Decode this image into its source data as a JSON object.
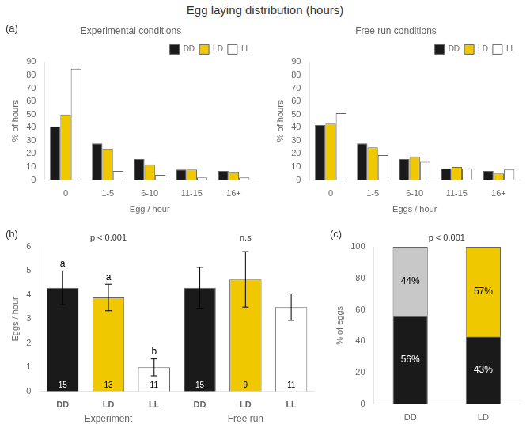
{
  "title": "Egg laying distribution (hours)",
  "chart_data": [
    {
      "type": "bar",
      "title": "Experimental conditions",
      "categories": [
        "0",
        "1-5",
        "6-10",
        "11-15",
        "16+"
      ],
      "xlabel": "Egg / hour",
      "ylabel": "% of hours",
      "ylim": [
        0,
        90
      ],
      "yticks": [
        0,
        10,
        20,
        30,
        40,
        50,
        60,
        70,
        80,
        90
      ],
      "grid": false,
      "legend": "upper right",
      "series": [
        {
          "name": "DD",
          "color": "#1a1a1a",
          "values": [
            41,
            28,
            16,
            8,
            7
          ]
        },
        {
          "name": "LD",
          "color": "#f0c800",
          "values": [
            50,
            24,
            12,
            8,
            6
          ]
        },
        {
          "name": "LL",
          "color": "#ffffff",
          "values": [
            85,
            7,
            4,
            2,
            2
          ]
        }
      ],
      "annotations": [
        {
          "text": "(a)",
          "anchor": "panel"
        }
      ]
    },
    {
      "type": "bar",
      "title": "Free run conditions",
      "categories": [
        "0",
        "1-5",
        "6-10",
        "11-15",
        "16+"
      ],
      "xlabel": "Eggs / hour",
      "ylabel": "% of hours",
      "ylim": [
        0,
        90
      ],
      "yticks": [
        0,
        10,
        20,
        30,
        40,
        50,
        60,
        70,
        80,
        90
      ],
      "grid": false,
      "legend": "upper right",
      "series": [
        {
          "name": "DD",
          "color": "#1a1a1a",
          "values": [
            42,
            28,
            16,
            9,
            7
          ]
        },
        {
          "name": "LD",
          "color": "#f0c800",
          "values": [
            43,
            25,
            18,
            10,
            5
          ]
        },
        {
          "name": "LL",
          "color": "#ffffff",
          "values": [
            51,
            19,
            14,
            9,
            8
          ]
        }
      ]
    },
    {
      "type": "bar",
      "categories": [
        "DD",
        "LD",
        "LL",
        "DD",
        "LD",
        "LL"
      ],
      "groups": [
        "Experiment",
        "Experiment",
        "Experiment",
        "Free run",
        "Free run",
        "Free run"
      ],
      "values": [
        4.3,
        3.9,
        1.0,
        4.3,
        4.65,
        3.5
      ],
      "errors": [
        0.7,
        0.55,
        0.35,
        0.85,
        1.15,
        0.55
      ],
      "colors": [
        "#1a1a1a",
        "#f0c800",
        "#ffffff",
        "#1a1a1a",
        "#f0c800",
        "#ffffff"
      ],
      "counts": [
        15,
        13,
        11,
        15,
        9,
        11
      ],
      "letters": [
        "a",
        "a",
        "b",
        null,
        null,
        null
      ],
      "ylabel": "Eggs / hour",
      "ylim": [
        0,
        6
      ],
      "yticks": [
        0,
        1,
        2,
        3,
        4,
        5,
        6
      ],
      "grid": false,
      "annotations": [
        {
          "text": "(b)",
          "anchor": "panel"
        },
        {
          "text": "p < 0.001",
          "anchor": "Experiment"
        },
        {
          "text": "n.s",
          "anchor": "Free run"
        }
      ]
    },
    {
      "type": "bar",
      "stacked": true,
      "categories": [
        "DD",
        "LD"
      ],
      "series": [
        {
          "values": [
            56,
            43
          ],
          "colors": [
            "#1a1a1a",
            "#1a1a1a"
          ],
          "value_labels": [
            "56%",
            "43%"
          ]
        },
        {
          "values": [
            44,
            57
          ],
          "colors": [
            "#c8c8c8",
            "#f0c800"
          ],
          "value_labels": [
            "44%",
            "57%"
          ]
        }
      ],
      "data_labels": true,
      "ylabel": "% of eggs",
      "ylim": [
        0,
        100
      ],
      "yticks": [
        0,
        20,
        40,
        60,
        80,
        100
      ],
      "grid": false,
      "annotations": [
        {
          "text": "(c)",
          "anchor": "panel"
        },
        {
          "text": "p < 0.001",
          "anchor": "top"
        }
      ]
    }
  ]
}
